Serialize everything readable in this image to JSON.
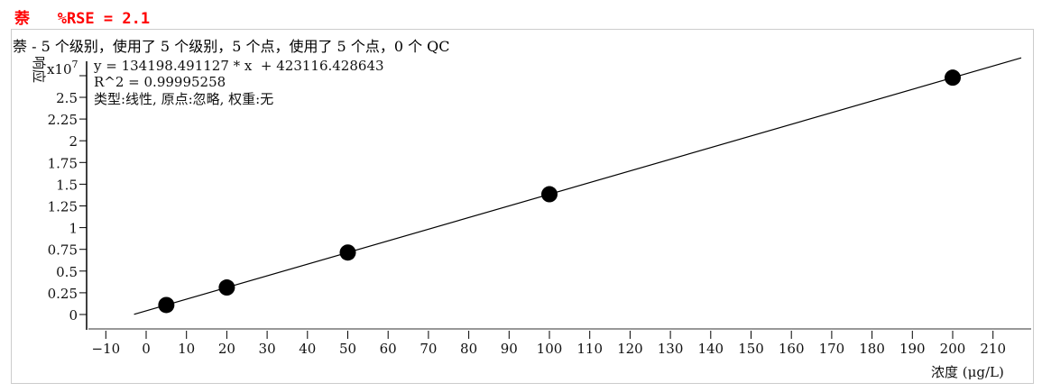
{
  "header": {
    "title": "萘   %RSE = 2.1",
    "summary": "萘 - 5 个级别，使用了 5 个级别，5 个点，使用了 5 个点，0 个 QC"
  },
  "chart_data": {
    "type": "scatter",
    "ylabel": "响应",
    "xlabel": "浓度 (μg/L)",
    "y_multiplier": "x10",
    "y_exponent": "7",
    "equation": "y = 134198.491127 * x  + 423116.428643",
    "r2": "R^2 = 0.99995258",
    "fit_info": "类型:线性, 原点:忽略, 权重:无",
    "fit": {
      "type": "linear",
      "slope": 134198.491127,
      "intercept": 423116.428643,
      "x_range": [
        -3,
        217
      ]
    },
    "x": [
      5,
      20,
      50,
      100,
      200
    ],
    "y": [
      1094109,
      3107086,
      7133041,
      13842966,
      27262815
    ],
    "xlim": [
      -13,
      222
    ],
    "ylim": [
      -0.1,
      2.85
    ],
    "y_unit_scale": 10000000,
    "xticks": [
      -10,
      0,
      10,
      20,
      30,
      40,
      50,
      60,
      70,
      80,
      90,
      100,
      110,
      120,
      130,
      140,
      150,
      160,
      170,
      180,
      190,
      200,
      210
    ],
    "yticks": [
      0,
      0.25,
      0.5,
      0.75,
      1,
      1.25,
      1.5,
      1.75,
      2,
      2.25,
      2.5
    ],
    "ytick_labels": [
      "0",
      "0.25",
      "0.5",
      "0.75",
      "1",
      "1.25",
      "1.5",
      "1.75",
      "2",
      "2.25",
      "2.5"
    ],
    "grid": false
  }
}
